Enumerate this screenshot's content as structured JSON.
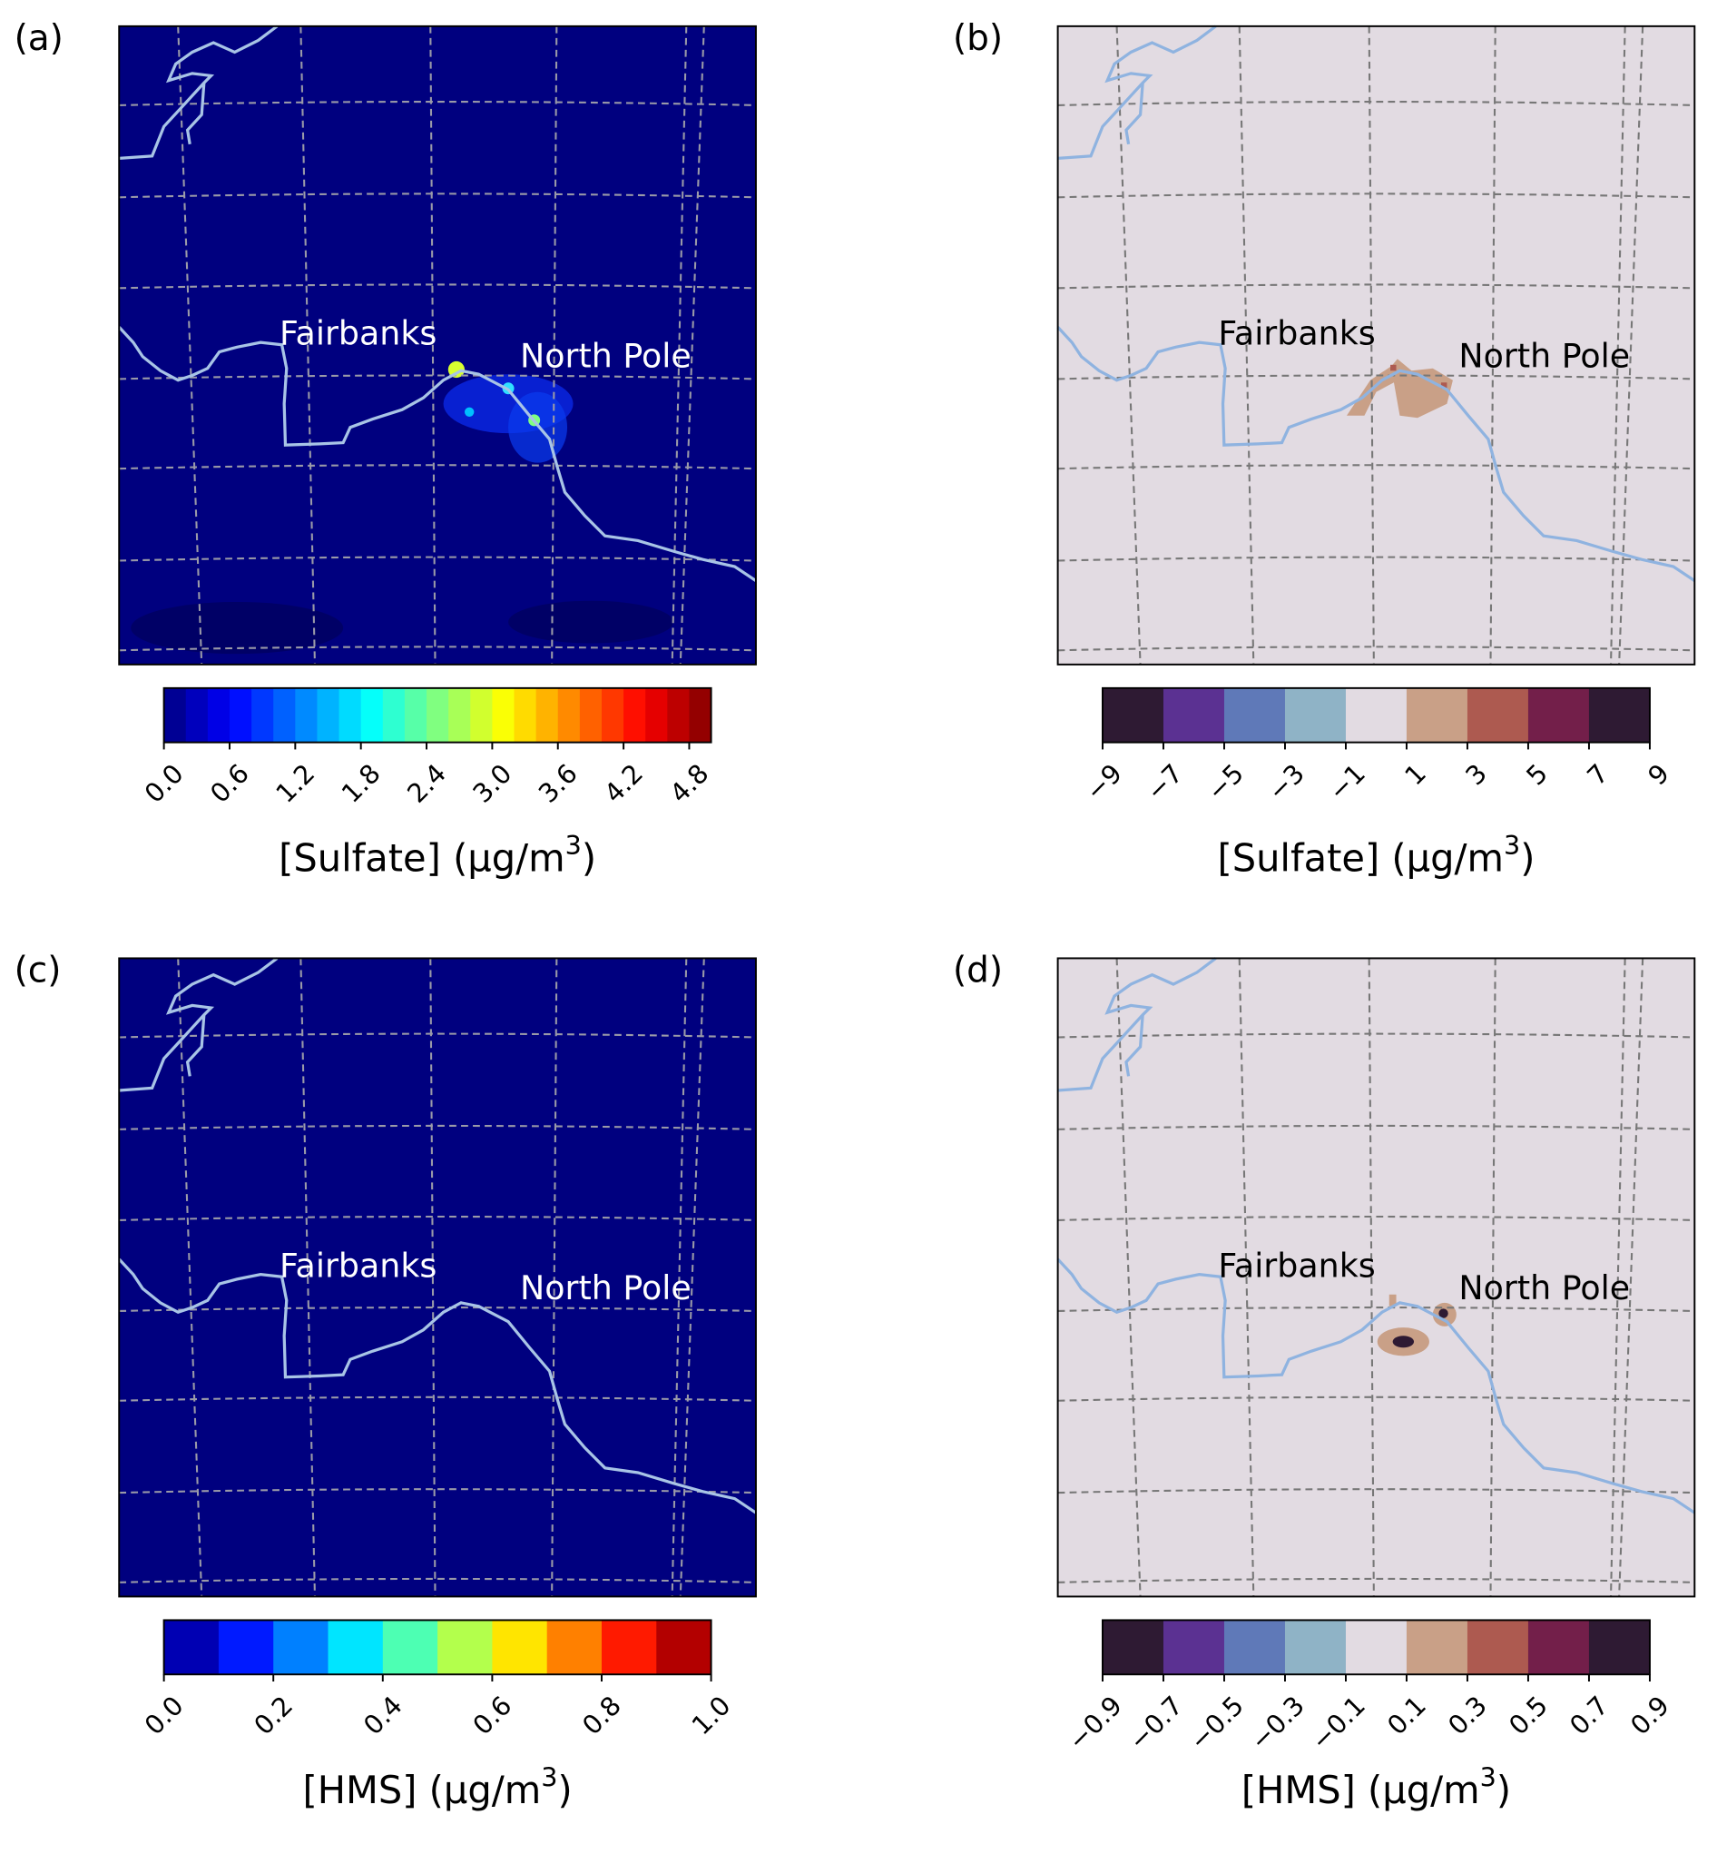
{
  "panels": [
    {
      "label": "(a)",
      "places": [
        "Fairbanks",
        "North Pole"
      ],
      "background": "#00007f",
      "place_color": "#ffffff",
      "colorbar": {
        "colormap": "jet",
        "levels": 25,
        "range": [
          0,
          5
        ],
        "ticks": [
          {
            "value": 0,
            "label": "0.0"
          },
          {
            "value": 0.6,
            "label": "0.6"
          },
          {
            "value": 1.2,
            "label": "1.2"
          },
          {
            "value": 1.8,
            "label": "1.8"
          },
          {
            "value": 2.4,
            "label": "2.4"
          },
          {
            "value": 3,
            "label": "3.0"
          },
          {
            "value": 3.6,
            "label": "3.6"
          },
          {
            "value": 4.2,
            "label": "4.2"
          },
          {
            "value": 4.8,
            "label": "4.8"
          }
        ],
        "label": "[Sulfate] (μg/m",
        "label_sup": "3",
        "label_end": ")"
      }
    },
    {
      "label": "(b)",
      "places": [
        "Fairbanks",
        "North Pole"
      ],
      "background": "#e2dbe2",
      "place_color": "#000000",
      "colorbar": {
        "colors": [
          "#2e1a33",
          "#5b3192",
          "#5f79b8",
          "#8fb3c6",
          "#e2dbe2",
          "#c9a087",
          "#ad5a50",
          "#731f4a",
          "#2e1a33"
        ],
        "range": [
          -9,
          9
        ],
        "ticks": [
          {
            "value": -9,
            "label": "−9"
          },
          {
            "value": -7,
            "label": "−7"
          },
          {
            "value": -5,
            "label": "−5"
          },
          {
            "value": -3,
            "label": "−3"
          },
          {
            "value": -1,
            "label": "−1"
          },
          1,
          3,
          5,
          7,
          9
        ],
        "label": "[Sulfate] (μg/m",
        "label_sup": "3",
        "label_end": ")"
      }
    },
    {
      "label": "(c)",
      "places": [
        "Fairbanks",
        "North Pole"
      ],
      "background": "#00007f",
      "place_color": "#ffffff",
      "colorbar": {
        "colormap": "jet",
        "levels": 10,
        "range": [
          0,
          1
        ],
        "ticks": [
          {
            "value": 0,
            "label": "0.0"
          },
          {
            "value": 0.2,
            "label": "0.2"
          },
          {
            "value": 0.4,
            "label": "0.4"
          },
          {
            "value": 0.6,
            "label": "0.6"
          },
          {
            "value": 0.8,
            "label": "0.8"
          },
          {
            "value": 1,
            "label": "1.0"
          }
        ],
        "label": "[HMS] (μg/m",
        "label_sup": "3",
        "label_end": ")"
      }
    },
    {
      "label": "(d)",
      "places": [
        "Fairbanks",
        "North Pole"
      ],
      "background": "#e2dbe2",
      "place_color": "#000000",
      "colorbar": {
        "colors": [
          "#2e1a33",
          "#5b3192",
          "#5f79b8",
          "#8fb3c6",
          "#e2dbe2",
          "#c9a087",
          "#ad5a50",
          "#731f4a",
          "#2e1a33"
        ],
        "range": [
          -0.9,
          0.9
        ],
        "ticks": [
          {
            "value": -0.9,
            "label": "−0.9"
          },
          {
            "value": -0.7,
            "label": "−0.7"
          },
          {
            "value": -0.5,
            "label": "−0.5"
          },
          {
            "value": -0.3,
            "label": "−0.3"
          },
          {
            "value": -0.1,
            "label": "−0.1"
          },
          0.1,
          0.3,
          0.5,
          0.7,
          0.9
        ],
        "label": "[HMS] (μg/m",
        "label_sup": "3",
        "label_end": ")"
      }
    }
  ]
}
